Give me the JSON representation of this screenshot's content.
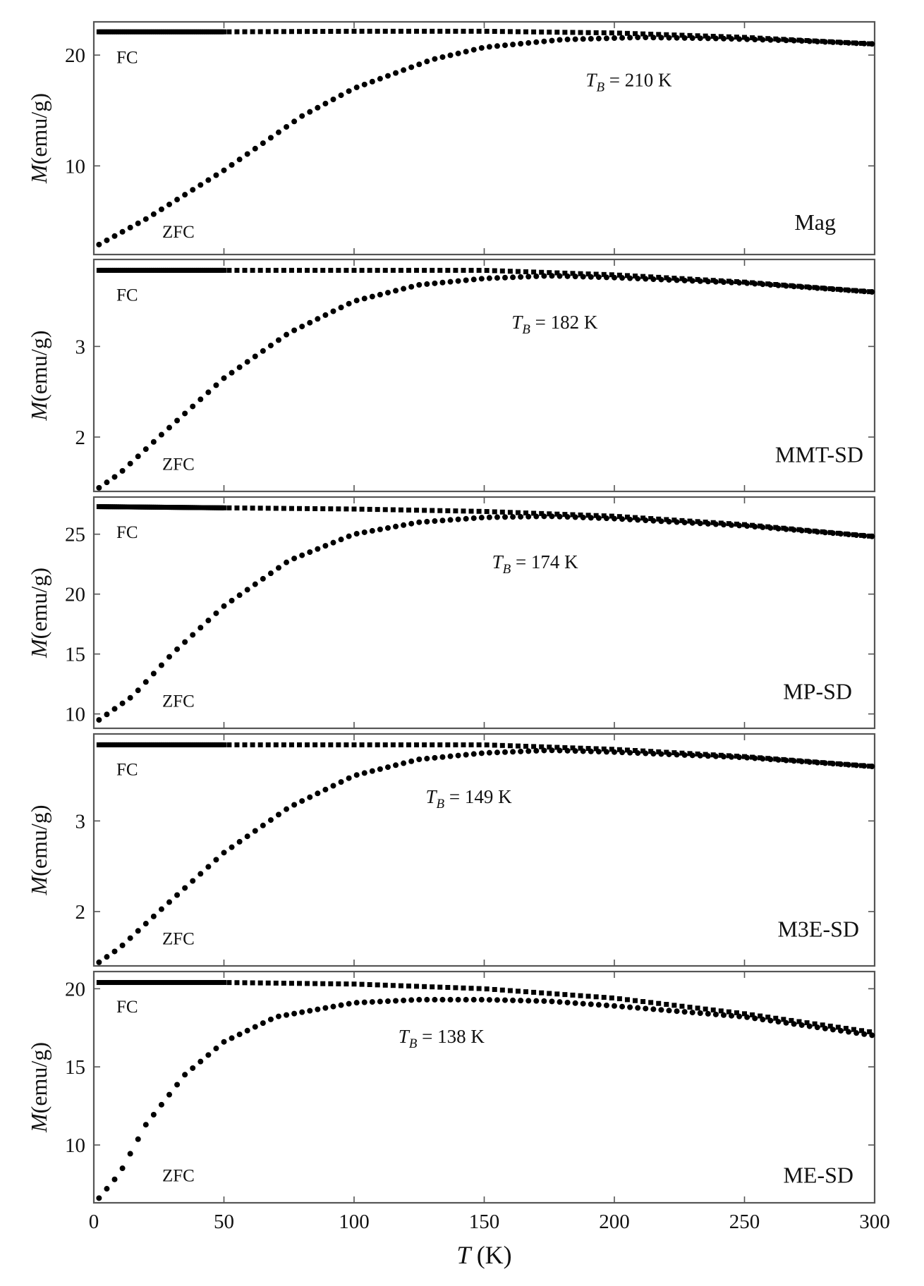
{
  "x_axis": {
    "label_var": "T",
    "label_unit": "(K)",
    "xlim": [
      0,
      300
    ],
    "ticks": [
      0,
      50,
      100,
      150,
      200,
      250,
      300
    ],
    "tick_labels": [
      "0",
      "50",
      "100",
      "150",
      "200",
      "250",
      "300"
    ]
  },
  "chart_data": [
    {
      "type": "scatter",
      "sample": "Mag",
      "annotation": {
        "var": "T",
        "sub": "B",
        "text": " = 210 K"
      },
      "ylabel_var": "M",
      "ylabel_unit": "(emu/g)",
      "ylim": [
        2,
        23
      ],
      "yticks": [
        10,
        20
      ],
      "ytick_labels": [
        "10",
        "20"
      ],
      "series": [
        {
          "name": "FC",
          "points": [
            [
              2,
              22.1
            ],
            [
              50,
              22.1
            ],
            [
              100,
              22.15
            ],
            [
              150,
              22.15
            ],
            [
              200,
              22.0
            ],
            [
              250,
              21.6
            ],
            [
              300,
              21.0
            ]
          ]
        },
        {
          "name": "ZFC",
          "points": [
            [
              2,
              2.9
            ],
            [
              20,
              5.2
            ],
            [
              50,
              9.6
            ],
            [
              80,
              14.5
            ],
            [
              100,
              17.0
            ],
            [
              130,
              19.6
            ],
            [
              150,
              20.7
            ],
            [
              180,
              21.4
            ],
            [
              210,
              21.6
            ],
            [
              240,
              21.5
            ],
            [
              270,
              21.3
            ],
            [
              300,
              21.0
            ]
          ]
        }
      ]
    },
    {
      "type": "scatter",
      "sample": "MMT-SD",
      "annotation": {
        "var": "T",
        "sub": "B",
        "text": " = 182 K"
      },
      "ylabel_var": "M",
      "ylabel_unit": "(emu/g)",
      "ylim": [
        1.4,
        3.96
      ],
      "yticks": [
        2,
        3
      ],
      "ytick_labels": [
        "2",
        "3"
      ],
      "series": [
        {
          "name": "FC",
          "points": [
            [
              2,
              3.84
            ],
            [
              50,
              3.84
            ],
            [
              100,
              3.84
            ],
            [
              150,
              3.84
            ],
            [
              200,
              3.79
            ],
            [
              250,
              3.71
            ],
            [
              300,
              3.6
            ]
          ]
        },
        {
          "name": "ZFC",
          "points": [
            [
              2,
              1.44
            ],
            [
              10,
              1.6
            ],
            [
              25,
              2.0
            ],
            [
              50,
              2.65
            ],
            [
              75,
              3.15
            ],
            [
              100,
              3.5
            ],
            [
              125,
              3.68
            ],
            [
              150,
              3.75
            ],
            [
              175,
              3.78
            ],
            [
              200,
              3.76
            ],
            [
              250,
              3.7
            ],
            [
              300,
              3.6
            ]
          ]
        }
      ]
    },
    {
      "type": "scatter",
      "sample": "MP-SD",
      "annotation": {
        "var": "T",
        "sub": "B",
        "text": " = 174 K"
      },
      "ylabel_var": "M",
      "ylabel_unit": "(emu/g)",
      "ylim": [
        8.8,
        28.1
      ],
      "yticks": [
        10,
        15,
        20,
        25
      ],
      "ytick_labels": [
        "10",
        "15",
        "20",
        "25"
      ],
      "series": [
        {
          "name": "FC",
          "points": [
            [
              2,
              27.3
            ],
            [
              50,
              27.2
            ],
            [
              100,
              27.1
            ],
            [
              150,
              26.9
            ],
            [
              200,
              26.5
            ],
            [
              250,
              25.8
            ],
            [
              300,
              24.8
            ]
          ]
        },
        {
          "name": "ZFC",
          "points": [
            [
              2,
              9.5
            ],
            [
              15,
              11.5
            ],
            [
              30,
              15.0
            ],
            [
              50,
              19.0
            ],
            [
              75,
              22.8
            ],
            [
              100,
              25.0
            ],
            [
              125,
              26.0
            ],
            [
              150,
              26.4
            ],
            [
              175,
              26.5
            ],
            [
              200,
              26.3
            ],
            [
              250,
              25.7
            ],
            [
              300,
              24.8
            ]
          ]
        }
      ]
    },
    {
      "type": "scatter",
      "sample": "M3E-SD",
      "annotation": {
        "var": "T",
        "sub": "B",
        "text": " = 149 K"
      },
      "ylabel_var": "M",
      "ylabel_unit": "(emu/g)",
      "ylim": [
        1.4,
        3.96
      ],
      "yticks": [
        2,
        3
      ],
      "ytick_labels": [
        "2",
        "3"
      ],
      "series": [
        {
          "name": "FC",
          "points": [
            [
              2,
              3.84
            ],
            [
              50,
              3.84
            ],
            [
              100,
              3.84
            ],
            [
              150,
              3.84
            ],
            [
              200,
              3.79
            ],
            [
              250,
              3.71
            ],
            [
              300,
              3.6
            ]
          ]
        },
        {
          "name": "ZFC",
          "points": [
            [
              2,
              1.44
            ],
            [
              10,
              1.6
            ],
            [
              25,
              2.0
            ],
            [
              50,
              2.65
            ],
            [
              75,
              3.15
            ],
            [
              100,
              3.5
            ],
            [
              125,
              3.68
            ],
            [
              150,
              3.75
            ],
            [
              175,
              3.78
            ],
            [
              200,
              3.76
            ],
            [
              250,
              3.7
            ],
            [
              300,
              3.6
            ]
          ]
        }
      ]
    },
    {
      "type": "scatter",
      "sample": "ME-SD",
      "annotation": {
        "var": "T",
        "sub": "B",
        "text": " = 138 K"
      },
      "ylabel_var": "M",
      "ylabel_unit": "(emu/g)",
      "ylim": [
        6.3,
        21.1
      ],
      "yticks": [
        10,
        15,
        20
      ],
      "ytick_labels": [
        "10",
        "15",
        "20"
      ],
      "series": [
        {
          "name": "FC",
          "points": [
            [
              2,
              20.4
            ],
            [
              50,
              20.4
            ],
            [
              100,
              20.3
            ],
            [
              150,
              20.0
            ],
            [
              200,
              19.4
            ],
            [
              250,
              18.4
            ],
            [
              300,
              17.2
            ]
          ]
        },
        {
          "name": "ZFC",
          "points": [
            [
              2,
              6.6
            ],
            [
              10,
              8.2
            ],
            [
              20,
              11.3
            ],
            [
              35,
              14.5
            ],
            [
              50,
              16.6
            ],
            [
              70,
              18.2
            ],
            [
              100,
              19.1
            ],
            [
              125,
              19.3
            ],
            [
              150,
              19.3
            ],
            [
              175,
              19.2
            ],
            [
              200,
              18.9
            ],
            [
              250,
              18.2
            ],
            [
              300,
              17.0
            ]
          ]
        }
      ]
    }
  ]
}
